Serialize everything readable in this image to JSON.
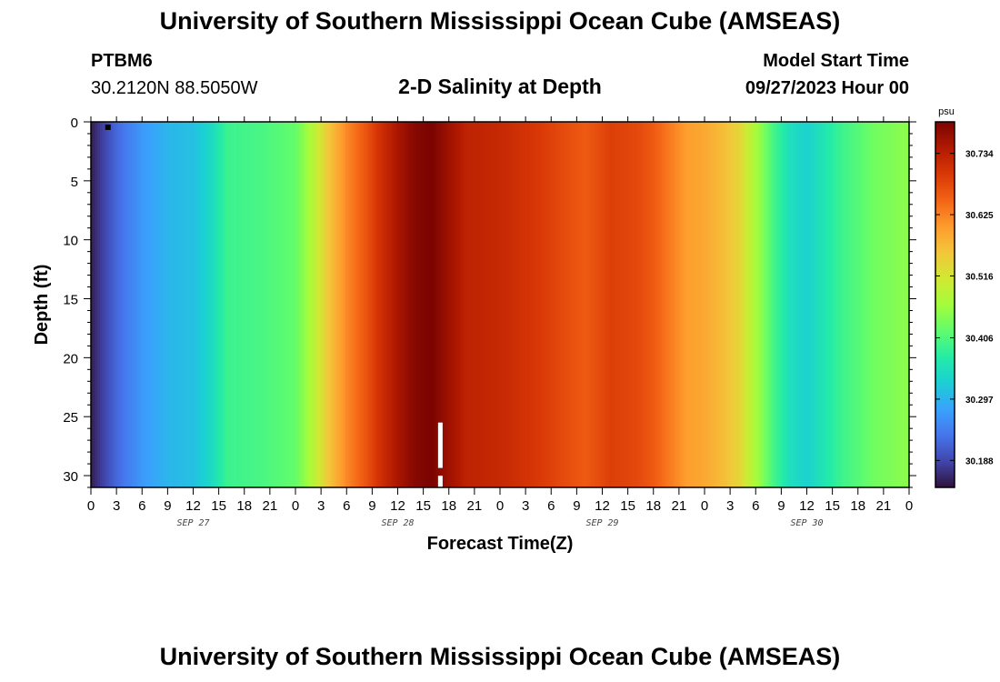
{
  "header": {
    "title": "University of Southern Mississippi Ocean Cube (AMSEAS)",
    "station_id": "PTBM6",
    "station_coords": "30.2120N  88.5050W",
    "subtitle": "2-D Salinity at Depth",
    "model_start_label": "Model Start Time",
    "model_start_value": "09/27/2023 Hour 00"
  },
  "footer": {
    "title": "University of Southern Mississippi Ocean Cube (AMSEAS)"
  },
  "chart_data": {
    "type": "heatmap",
    "title": "2-D Salinity at Depth",
    "xlabel": "Forecast Time(Z)",
    "ylabel": "Depth (ft)",
    "x_tick_labels": [
      "0",
      "3",
      "6",
      "9",
      "12",
      "15",
      "18",
      "21",
      "0",
      "3",
      "6",
      "9",
      "12",
      "15",
      "18",
      "21",
      "0",
      "3",
      "6",
      "9",
      "12",
      "15",
      "18",
      "21",
      "0",
      "3",
      "6",
      "9",
      "12",
      "15",
      "18",
      "21",
      "0"
    ],
    "x_range_hours": [
      0,
      96
    ],
    "date_labels": [
      {
        "label": "SEP 27",
        "hour": 12
      },
      {
        "label": "SEP 28",
        "hour": 36
      },
      {
        "label": "SEP 29",
        "hour": 60
      },
      {
        "label": "SEP 30",
        "hour": 84
      }
    ],
    "y_ticks": [
      0,
      5,
      10,
      15,
      20,
      25,
      30
    ],
    "ylim": [
      0,
      31
    ],
    "y_inverted": true,
    "colorbar": {
      "unit": "psu",
      "ticks": [
        "30.734",
        "30.625",
        "30.516",
        "30.406",
        "30.297",
        "30.188"
      ],
      "min": 30.14,
      "max": 30.79,
      "colormap": [
        "#30123b",
        "#4145ab",
        "#4675ed",
        "#39a2fc",
        "#1bcfd4",
        "#24eca6",
        "#61fc6c",
        "#a4fc3b",
        "#d1e834",
        "#f3c63a",
        "#fe9b2d",
        "#f36315",
        "#d93806",
        "#b11901",
        "#7a0402"
      ]
    },
    "salinity_by_hour": [
      [
        0,
        30.15
      ],
      [
        3,
        30.22
      ],
      [
        6,
        30.27
      ],
      [
        9,
        30.3
      ],
      [
        12,
        30.31
      ],
      [
        14,
        30.34
      ],
      [
        16,
        30.39
      ],
      [
        20,
        30.4
      ],
      [
        24,
        30.42
      ],
      [
        26,
        30.48
      ],
      [
        28,
        30.56
      ],
      [
        30,
        30.62
      ],
      [
        32,
        30.66
      ],
      [
        34,
        30.71
      ],
      [
        36,
        30.75
      ],
      [
        38,
        30.78
      ],
      [
        40,
        30.79
      ],
      [
        42,
        30.76
      ],
      [
        44,
        30.73
      ],
      [
        48,
        30.72
      ],
      [
        52,
        30.7
      ],
      [
        55,
        30.68
      ],
      [
        58,
        30.66
      ],
      [
        61,
        30.69
      ],
      [
        64,
        30.68
      ],
      [
        66,
        30.66
      ],
      [
        68,
        30.63
      ],
      [
        70,
        30.6
      ],
      [
        72,
        30.59
      ],
      [
        74,
        30.57
      ],
      [
        76,
        30.54
      ],
      [
        78,
        30.47
      ],
      [
        80,
        30.4
      ],
      [
        82,
        30.35
      ],
      [
        84,
        30.33
      ],
      [
        86,
        30.36
      ],
      [
        88,
        30.39
      ],
      [
        90,
        30.41
      ],
      [
        92,
        30.43
      ],
      [
        94,
        30.44
      ],
      [
        96,
        30.45
      ]
    ],
    "markers": [
      {
        "name": "current-time-marker",
        "hour": 41,
        "depth_start": 25.5,
        "depth_end": 31
      },
      {
        "name": "station-marker",
        "hour": 2,
        "depth": 0.3
      }
    ]
  }
}
